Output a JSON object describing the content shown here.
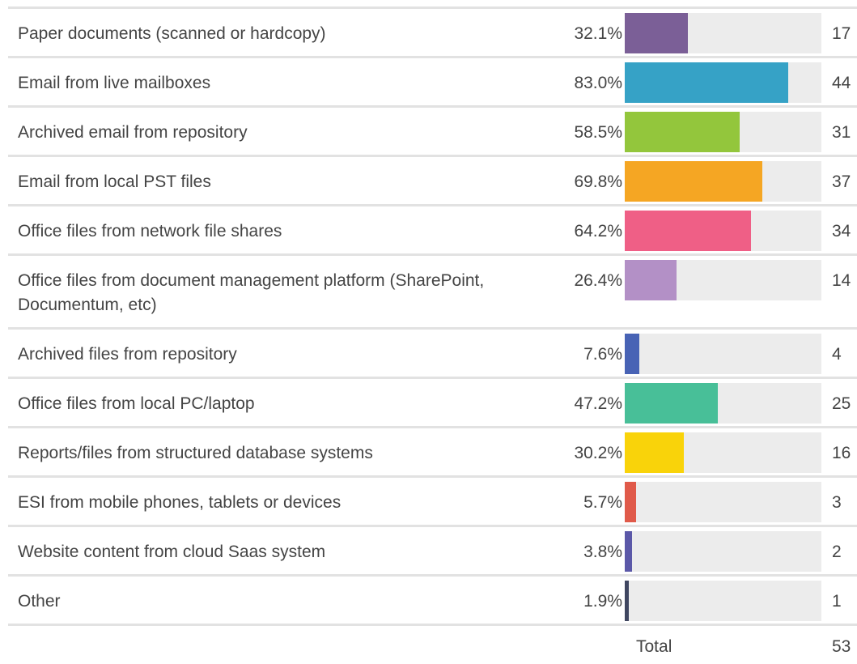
{
  "chart_data": {
    "type": "bar",
    "categories": [
      "Paper documents (scanned or hardcopy)",
      "Email from live mailboxes",
      "Archived email from repository",
      "Email from local PST files",
      "Office files from network file shares",
      "Office files from document management platform (SharePoint, Documentum, etc)",
      "Archived files from repository",
      "Office files from local PC/laptop",
      "Reports/files from structured database systems",
      "ESI from mobile phones, tablets or devices",
      "Website content from cloud Saas system",
      "Other"
    ],
    "values": [
      32.1,
      83.0,
      58.5,
      69.8,
      64.2,
      26.4,
      7.6,
      47.2,
      30.2,
      5.7,
      3.8,
      1.9
    ],
    "value_labels": [
      "32.1%",
      "83.0%",
      "58.5%",
      "69.8%",
      "64.2%",
      "26.4%",
      "7.6%",
      "47.2%",
      "30.2%",
      "5.7%",
      "3.8%",
      "1.9%"
    ],
    "counts": [
      17,
      44,
      31,
      37,
      34,
      14,
      4,
      25,
      16,
      3,
      2,
      1
    ],
    "colors": [
      "#7b5f97",
      "#36a2c6",
      "#93c63c",
      "#f5a623",
      "#ef5f86",
      "#b390c6",
      "#4863b5",
      "#48bf98",
      "#f9d30a",
      "#e05a4a",
      "#5b58a8",
      "#3f4660"
    ],
    "xlim": [
      0,
      100
    ],
    "total_label": "Total",
    "total": 53
  }
}
